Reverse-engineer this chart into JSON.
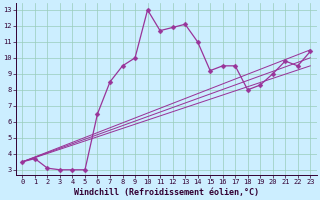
{
  "xlabel": "Windchill (Refroidissement éolien,°C)",
  "bg_color": "#cceeff",
  "line_color": "#993399",
  "grid_color": "#99ccbb",
  "xmin": -0.5,
  "xmax": 23.5,
  "ymin": 2.7,
  "ymax": 13.4,
  "main_line": {
    "x": [
      0,
      1,
      2,
      3,
      4,
      5,
      6,
      7,
      8,
      9,
      10,
      11,
      12,
      13,
      14,
      15,
      16,
      17,
      18,
      19,
      20,
      21,
      22,
      23
    ],
    "y": [
      3.5,
      3.7,
      3.1,
      3.0,
      3.0,
      3.0,
      6.5,
      8.5,
      9.5,
      10.0,
      13.0,
      11.7,
      11.9,
      12.1,
      11.0,
      9.2,
      9.5,
      9.5,
      8.0,
      8.3,
      9.0,
      9.8,
      9.5,
      10.4
    ]
  },
  "ref_lines": [
    {
      "x": [
        0,
        23
      ],
      "y": [
        3.5,
        10.5
      ]
    },
    {
      "x": [
        0,
        23
      ],
      "y": [
        3.5,
        10.0
      ]
    },
    {
      "x": [
        0,
        23
      ],
      "y": [
        3.5,
        9.5
      ]
    }
  ],
  "xticks": [
    0,
    1,
    2,
    3,
    4,
    5,
    6,
    7,
    8,
    9,
    10,
    11,
    12,
    13,
    14,
    15,
    16,
    17,
    18,
    19,
    20,
    21,
    22,
    23
  ],
  "yticks": [
    3,
    4,
    5,
    6,
    7,
    8,
    9,
    10,
    11,
    12,
    13
  ],
  "tick_fontsize": 5.0,
  "label_fontsize": 6.0,
  "marker_size": 2.5,
  "line_width": 0.9
}
